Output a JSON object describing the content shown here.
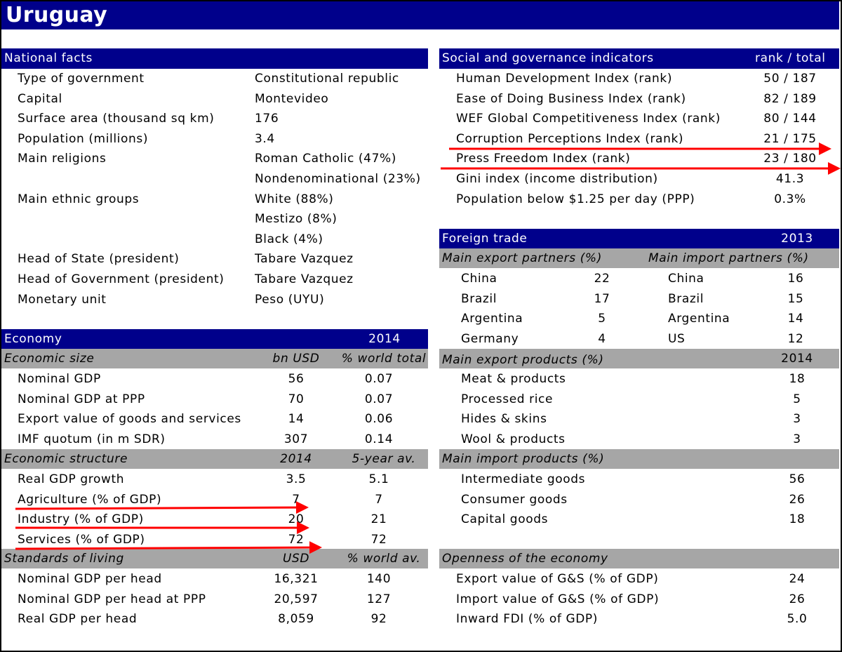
{
  "title": "Uruguay",
  "national_facts": {
    "header": "National facts",
    "rows": [
      {
        "label": "Type of government",
        "value": "Constitutional republic"
      },
      {
        "label": "Capital",
        "value": "Montevideo"
      },
      {
        "label": "Surface area (thousand sq km)",
        "value": "176"
      },
      {
        "label": "Population (millions)",
        "value": "3.4"
      },
      {
        "label": "Main religions",
        "value": "Roman Catholic (47%)"
      },
      {
        "label": "",
        "value": "Nondenominational (23%)"
      },
      {
        "label": "Main ethnic groups",
        "value": "White (88%)"
      },
      {
        "label": "",
        "value": "Mestizo (8%)"
      },
      {
        "label": "",
        "value": "Black (4%)"
      },
      {
        "label": "Head of State (president)",
        "value": "Tabare Vazquez"
      },
      {
        "label": "Head of Government (president)",
        "value": "Tabare Vazquez"
      },
      {
        "label": "Monetary unit",
        "value": "Peso (UYU)"
      }
    ]
  },
  "economy": {
    "header": "Economy",
    "year": "2014",
    "size": {
      "title": "Economic size",
      "col1": "bn USD",
      "col2": "% world total",
      "rows": [
        {
          "label": "Nominal GDP",
          "v1": "56",
          "v2": "0.07"
        },
        {
          "label": "Nominal GDP at PPP",
          "v1": "70",
          "v2": "0.07"
        },
        {
          "label": "Export value of goods and services",
          "v1": "14",
          "v2": "0.06"
        },
        {
          "label": "IMF quotum (in m SDR)",
          "v1": "307",
          "v2": "0.14"
        }
      ]
    },
    "structure": {
      "title": "Economic structure",
      "col1": "2014",
      "col2": "5-year av.",
      "rows": [
        {
          "label": "Real GDP growth",
          "v1": "3.5",
          "v2": "5.1"
        },
        {
          "label": "Agriculture (% of GDP)",
          "v1": "7",
          "v2": "7"
        },
        {
          "label": "Industry (% of GDP)",
          "v1": "20",
          "v2": "21"
        },
        {
          "label": "Services (% of GDP)",
          "v1": "72",
          "v2": "72"
        }
      ]
    },
    "living": {
      "title": "Standards of living",
      "col1": "USD",
      "col2": "% world av.",
      "rows": [
        {
          "label": "Nominal GDP per head",
          "v1": "16,321",
          "v2": "140"
        },
        {
          "label": "Nominal GDP per head at PPP",
          "v1": "20,597",
          "v2": "127"
        },
        {
          "label": "Real GDP per head",
          "v1": "8,059",
          "v2": "92"
        }
      ]
    }
  },
  "social": {
    "header": "Social and governance indicators",
    "col": "rank / total",
    "rows": [
      {
        "label": "Human Development Index (rank)",
        "value": "50 / 187"
      },
      {
        "label": "Ease of Doing Business Index (rank)",
        "value": "82 / 189"
      },
      {
        "label": "WEF Global Competitiveness Index (rank)",
        "value": "80 / 144"
      },
      {
        "label": "Corruption Perceptions Index (rank)",
        "value": "21 / 175"
      },
      {
        "label": "Press Freedom Index (rank)",
        "value": "23 / 180"
      },
      {
        "label": "Gini index (income distribution)",
        "value": "41.3"
      },
      {
        "label": "Population below $1.25 per day (PPP)",
        "value": "0.3%"
      }
    ]
  },
  "trade": {
    "header": "Foreign trade",
    "year": "2013",
    "partners": {
      "export_title": "Main export partners (%)",
      "import_title": "Main import partners (%)",
      "rows": [
        {
          "exp": "China",
          "exp_v": "22",
          "imp": "China",
          "imp_v": "16"
        },
        {
          "exp": "Brazil",
          "exp_v": "17",
          "imp": "Brazil",
          "imp_v": "15"
        },
        {
          "exp": "Argentina",
          "exp_v": "5",
          "imp": "Argentina",
          "imp_v": "14"
        },
        {
          "exp": "Germany",
          "exp_v": "4",
          "imp": "US",
          "imp_v": "12"
        }
      ]
    },
    "export_products": {
      "title": "Main export products (%)",
      "year": "2014",
      "rows": [
        {
          "label": "Meat & products",
          "value": "18"
        },
        {
          "label": "Processed rice",
          "value": "5"
        },
        {
          "label": "Hides & skins",
          "value": "3"
        },
        {
          "label": "Wool & products",
          "value": "3"
        }
      ]
    },
    "import_products": {
      "title": "Main import products (%)",
      "rows": [
        {
          "label": "Intermediate goods",
          "value": "56"
        },
        {
          "label": "Consumer goods",
          "value": "26"
        },
        {
          "label": "Capital goods",
          "value": "18"
        }
      ]
    },
    "openness": {
      "title": "Openness of the economy",
      "rows": [
        {
          "label": "Export value of G&S (% of GDP)",
          "value": "24"
        },
        {
          "label": "Import value of G&S (% of GDP)",
          "value": "26"
        },
        {
          "label": "Inward FDI (% of GDP)",
          "value": "5.0"
        }
      ]
    }
  },
  "annotation_color": "#ff0000",
  "header_color": "#00008b",
  "subheader_color": "#a6a6a6"
}
